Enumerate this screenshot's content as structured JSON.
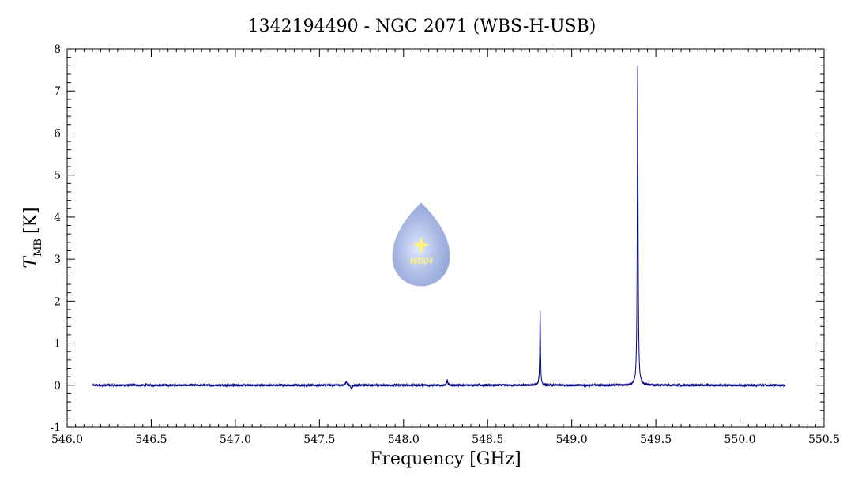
{
  "chart_data": {
    "type": "line",
    "title": "1342194490 - NGC 2071 (WBS-H-USB)",
    "xlabel": "Frequency [GHz]",
    "ylabel_main": "T",
    "ylabel_sub": "MB",
    "ylabel_unit": "[K]",
    "xlim": [
      546.0,
      550.5
    ],
    "ylim": [
      -1,
      8
    ],
    "x_ticks": [
      "546.0",
      "546.5",
      "547.0",
      "547.5",
      "548.0",
      "548.5",
      "549.0",
      "549.5",
      "550.0",
      "550.5"
    ],
    "y_ticks": [
      "-1",
      "0",
      "1",
      "2",
      "3",
      "4",
      "5",
      "6",
      "7",
      "8"
    ],
    "grid": false,
    "series_color": "#00008b",
    "x_range": [
      546.15,
      550.27
    ],
    "baseline": 0.0,
    "features": [
      {
        "center": 547.66,
        "height": 0.08,
        "width": 0.006
      },
      {
        "center": 547.69,
        "height": -0.08,
        "width": 0.004
      },
      {
        "center": 548.26,
        "height": 0.12,
        "width": 0.003
      },
      {
        "center": 548.812,
        "height": 1.8,
        "width": 0.0025
      },
      {
        "center": 549.392,
        "height": 7.6,
        "width": 0.0028
      }
    ]
  },
  "logo": {
    "text": "WISH",
    "colors": {
      "drop_light": "#c8d4ee",
      "drop_dark": "#8ea2d6",
      "star": "#fff27a"
    }
  }
}
